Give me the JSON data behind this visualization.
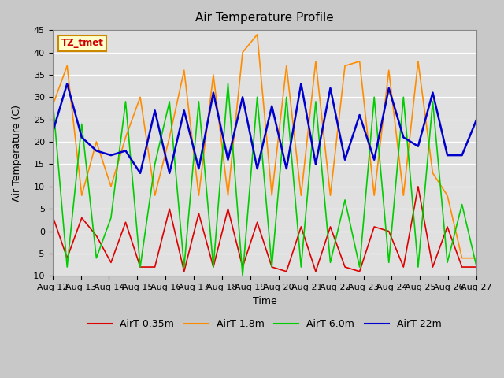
{
  "title": "Air Temperature Profile",
  "xlabel": "Time",
  "ylabel": "Air Temperature (C)",
  "ylim": [
    -10,
    45
  ],
  "annotation_text": "TZ_tmet",
  "fig_facecolor": "#c8c8c8",
  "plot_bg_color": "#e0e0e0",
  "x_tick_labels": [
    "Aug 12",
    "Aug 13",
    "Aug 14",
    "Aug 15",
    "Aug 16",
    "Aug 17",
    "Aug 18",
    "Aug 19",
    "Aug 20",
    "Aug 21",
    "Aug 22",
    "Aug 23",
    "Aug 24",
    "Aug 25",
    "Aug 26",
    "Aug 27"
  ],
  "series": [
    {
      "label": "AirT 0.35m",
      "color": "#dd0000",
      "linewidth": 1.2,
      "data": [
        3.5,
        -6,
        3,
        -1,
        -7,
        2,
        -8,
        -8,
        5,
        -9,
        4,
        -8,
        5,
        -8,
        2,
        -8,
        -9,
        1,
        -9,
        1,
        -8,
        -9,
        1,
        0,
        -8,
        10,
        -8,
        1,
        -8,
        -8
      ]
    },
    {
      "label": "AirT 1.8m",
      "color": "#ff8c00",
      "linewidth": 1.2,
      "data": [
        28,
        37,
        8,
        20,
        10,
        21,
        30,
        8,
        21,
        36,
        8,
        35,
        8,
        40,
        44,
        8,
        37,
        8,
        38,
        8,
        37,
        38,
        8,
        36,
        8,
        38,
        13,
        8,
        -6,
        -6
      ]
    },
    {
      "label": "AirT 6.0m",
      "color": "#00cc00",
      "linewidth": 1.2,
      "data": [
        30,
        -8,
        24,
        -6,
        3,
        29,
        -8,
        15,
        29,
        -8,
        29,
        -8,
        33,
        -10,
        30,
        -8,
        30,
        -8,
        29,
        -7,
        7,
        -8,
        30,
        -7,
        30,
        -8,
        29,
        -7,
        6,
        -8
      ]
    },
    {
      "label": "AirT 22m",
      "color": "#0000cc",
      "linewidth": 1.8,
      "data": [
        22,
        33,
        21,
        18,
        17,
        18,
        13,
        27,
        13,
        27,
        14,
        31,
        16,
        30,
        14,
        28,
        14,
        33,
        15,
        32,
        16,
        26,
        16,
        32,
        21,
        19,
        31,
        17,
        17,
        25
      ]
    }
  ],
  "legend_entries": [
    "AirT 0.35m",
    "AirT 1.8m",
    "AirT 6.0m",
    "AirT 22m"
  ],
  "legend_colors": [
    "#dd0000",
    "#ff8c00",
    "#00cc00",
    "#0000cc"
  ]
}
